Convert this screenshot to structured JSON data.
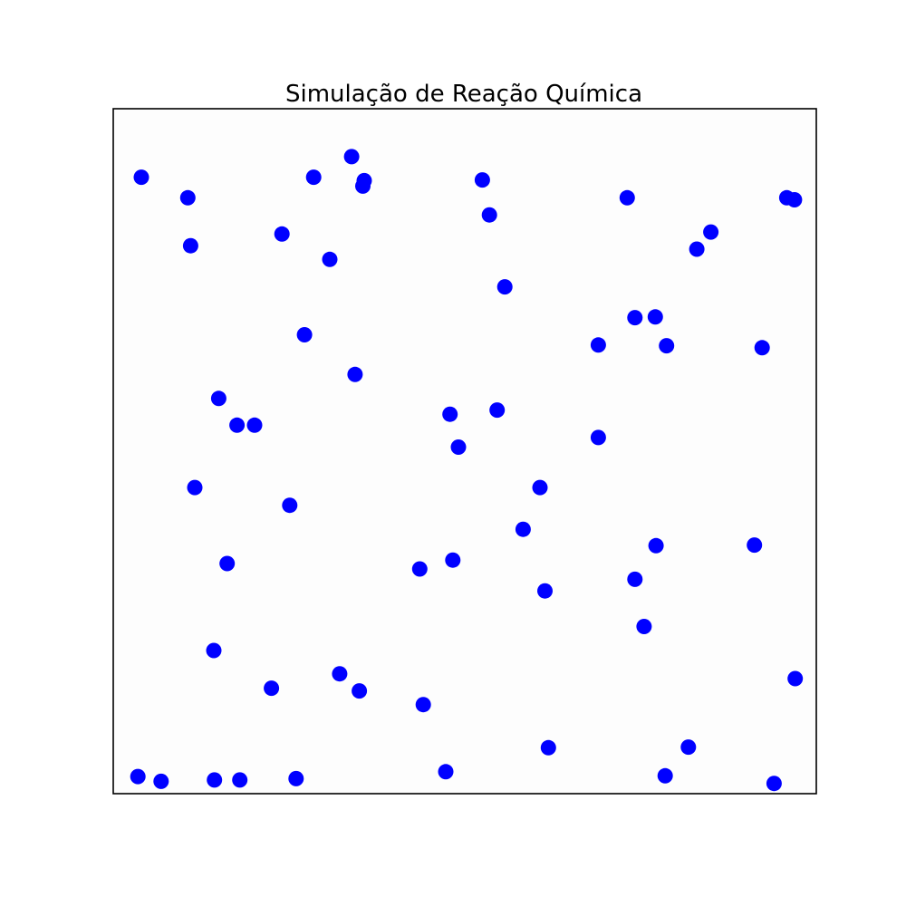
{
  "chart_data": {
    "type": "scatter",
    "title": "Simulação de Reação Química",
    "xlabel": "",
    "ylabel": "",
    "xlim": [
      0,
      1
    ],
    "ylim": [
      0,
      1
    ],
    "axes_visible": false,
    "grid": false,
    "marker_color": "#0000ff",
    "background_color": "#fdfdfd",
    "frame_color": "#000000",
    "series": [
      {
        "points": [
          [
            0.04,
            0.9
          ],
          [
            0.106,
            0.87
          ],
          [
            0.11,
            0.8
          ],
          [
            0.285,
            0.9
          ],
          [
            0.339,
            0.93
          ],
          [
            0.357,
            0.895
          ],
          [
            0.355,
            0.887
          ],
          [
            0.24,
            0.817
          ],
          [
            0.308,
            0.78
          ],
          [
            0.525,
            0.896
          ],
          [
            0.535,
            0.845
          ],
          [
            0.731,
            0.87
          ],
          [
            0.958,
            0.87
          ],
          [
            0.969,
            0.867
          ],
          [
            0.85,
            0.82
          ],
          [
            0.83,
            0.795
          ],
          [
            0.557,
            0.74
          ],
          [
            0.742,
            0.695
          ],
          [
            0.771,
            0.696
          ],
          [
            0.69,
            0.655
          ],
          [
            0.787,
            0.654
          ],
          [
            0.923,
            0.651
          ],
          [
            0.272,
            0.67
          ],
          [
            0.344,
            0.612
          ],
          [
            0.15,
            0.577
          ],
          [
            0.176,
            0.538
          ],
          [
            0.201,
            0.538
          ],
          [
            0.479,
            0.554
          ],
          [
            0.546,
            0.56
          ],
          [
            0.491,
            0.506
          ],
          [
            0.69,
            0.52
          ],
          [
            0.116,
            0.447
          ],
          [
            0.251,
            0.421
          ],
          [
            0.607,
            0.447
          ],
          [
            0.583,
            0.386
          ],
          [
            0.162,
            0.336
          ],
          [
            0.436,
            0.328
          ],
          [
            0.483,
            0.341
          ],
          [
            0.772,
            0.362
          ],
          [
            0.912,
            0.363
          ],
          [
            0.742,
            0.313
          ],
          [
            0.614,
            0.296
          ],
          [
            0.755,
            0.244
          ],
          [
            0.143,
            0.209
          ],
          [
            0.322,
            0.175
          ],
          [
            0.225,
            0.154
          ],
          [
            0.35,
            0.15
          ],
          [
            0.441,
            0.13
          ],
          [
            0.97,
            0.168
          ],
          [
            0.619,
            0.067
          ],
          [
            0.818,
            0.068
          ],
          [
            0.035,
            0.025
          ],
          [
            0.068,
            0.018
          ],
          [
            0.144,
            0.02
          ],
          [
            0.18,
            0.02
          ],
          [
            0.26,
            0.022
          ],
          [
            0.473,
            0.032
          ],
          [
            0.785,
            0.026
          ],
          [
            0.94,
            0.015
          ]
        ]
      }
    ]
  }
}
